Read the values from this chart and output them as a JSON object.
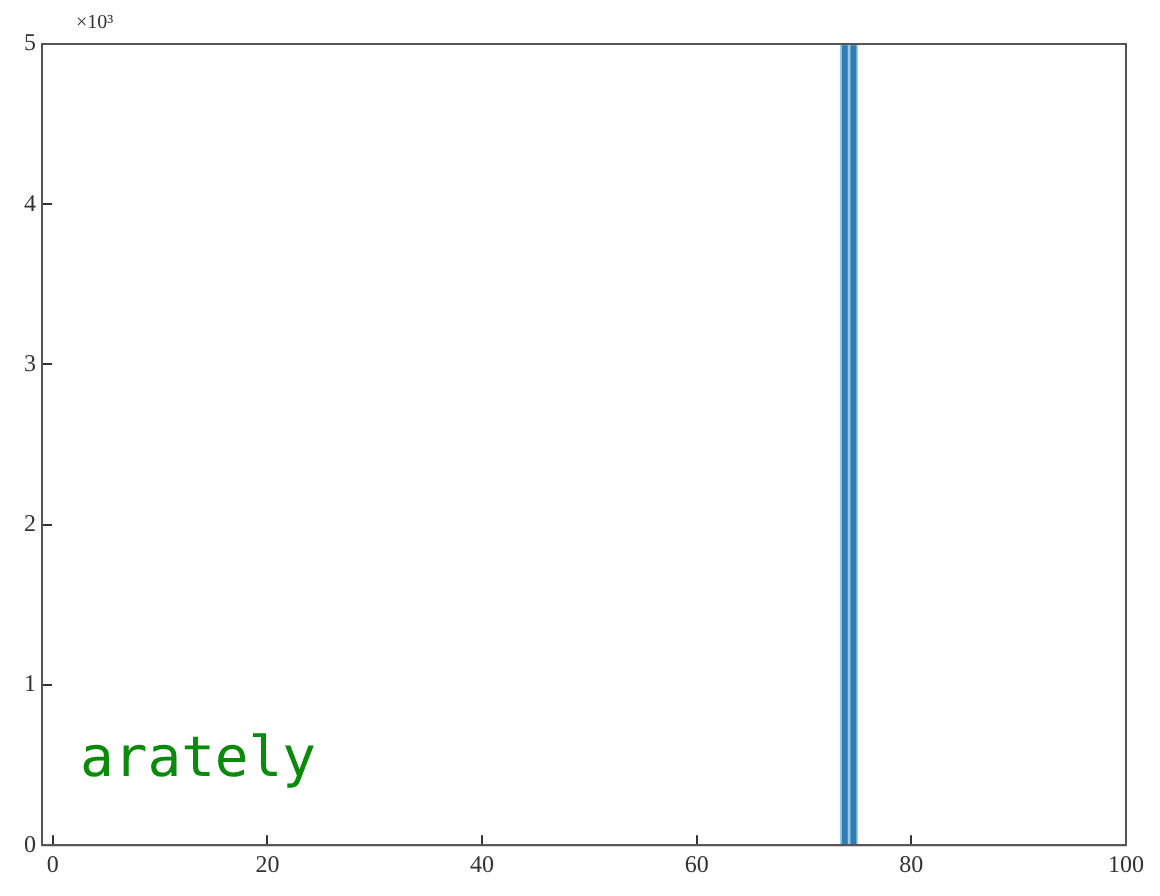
{
  "chart_data": {
    "type": "histogram",
    "bins": [
      73.4,
      74.2,
      75.0
    ],
    "values": [
      5,
      5
    ],
    "color": "#2f7db4",
    "xlim": [
      -1,
      100
    ],
    "xticks": [
      0,
      20,
      40,
      60,
      80,
      100
    ],
    "ylim": [
      0,
      5
    ],
    "yticks": [
      0,
      1,
      2,
      3,
      4,
      5
    ],
    "annotations": [
      "×10³",
      "arately"
    ],
    "grid": false,
    "legend": false
  }
}
